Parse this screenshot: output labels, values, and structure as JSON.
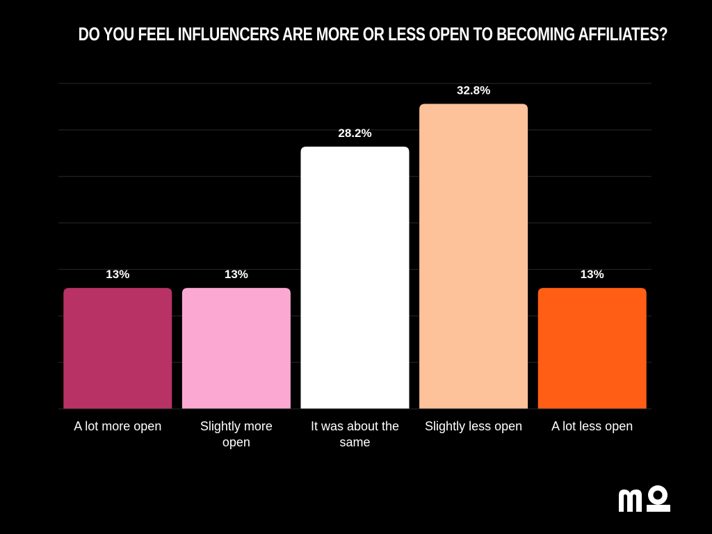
{
  "chart_data": {
    "type": "bar",
    "title": "DO YOU FEEL INFLUENCERS ARE MORE OR LESS OPEN TO BECOMING AFFILIATES?",
    "categories": [
      "A lot more open",
      "Slightly more open",
      "It was about the same",
      "Slightly less open",
      "A lot less open"
    ],
    "category_lines": [
      [
        "A lot more open"
      ],
      [
        "Slightly more",
        "open"
      ],
      [
        "It was about the",
        "same"
      ],
      [
        "Slightly less open"
      ],
      [
        "A lot less open"
      ]
    ],
    "values": [
      13,
      13,
      28.2,
      32.8,
      13
    ],
    "value_labels": [
      "13%",
      "13%",
      "28.2%",
      "32.8%",
      "13%"
    ],
    "colors": [
      "#B83266",
      "#FBA9D2",
      "#FFFFFF",
      "#FEC29A",
      "#FF5E14"
    ],
    "ylim": [
      0,
      35
    ],
    "gridlines": 7,
    "grid": true,
    "xlabel": "",
    "ylabel": ""
  },
  "logo": {
    "icon": "mo-logo-icon",
    "text": "mo"
  },
  "theme": {
    "background": "#000000",
    "grid_color": "#2a2a2a",
    "text_color": "#FFFFFF"
  }
}
